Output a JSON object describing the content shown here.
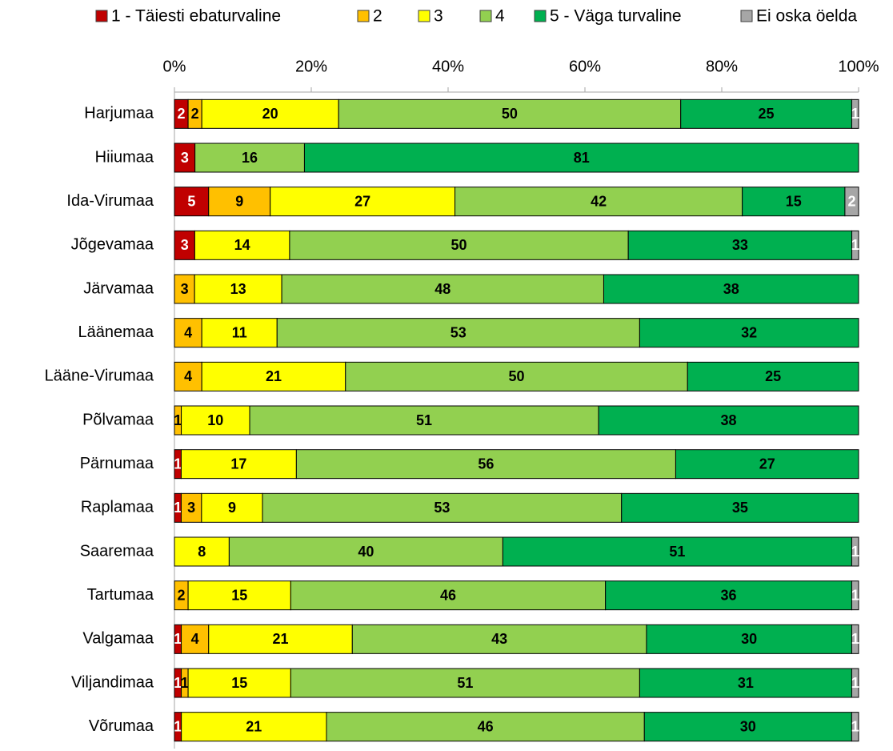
{
  "chart_data": {
    "type": "bar",
    "orientation": "horizontal",
    "stacked": "percent",
    "categories": [
      "Harjumaa",
      "Hiiumaa",
      "Ida-Virumaa",
      "Jõgevamaa",
      "Järvamaa",
      "Läänemaa",
      "Lääne-Virumaa",
      "Põlvamaa",
      "Pärnumaa",
      "Raplamaa",
      "Saaremaa",
      "Tartumaa",
      "Valgamaa",
      "Viljandimaa",
      "Võrumaa"
    ],
    "series": [
      {
        "name": "1 - Täiesti ebaturvaline",
        "color": "#c00000",
        "label_color": "#ffffff",
        "values": [
          2,
          3,
          5,
          3,
          null,
          null,
          null,
          null,
          1,
          1,
          null,
          null,
          1,
          1,
          1
        ]
      },
      {
        "name": "2",
        "color": "#ffc000",
        "label_color": "#000000",
        "values": [
          2,
          null,
          9,
          null,
          3,
          4,
          4,
          1,
          null,
          3,
          null,
          2,
          4,
          1,
          null
        ]
      },
      {
        "name": "3",
        "color": "#ffff00",
        "label_color": "#000000",
        "values": [
          20,
          null,
          27,
          14,
          13,
          11,
          21,
          10,
          17,
          9,
          8,
          15,
          21,
          15,
          21
        ]
      },
      {
        "name": "4",
        "color": "#92d050",
        "label_color": "#000000",
        "values": [
          50,
          16,
          42,
          50,
          48,
          53,
          50,
          51,
          56,
          53,
          40,
          46,
          43,
          51,
          46
        ]
      },
      {
        "name": "5 - Väga turvaline",
        "color": "#00b050",
        "label_color": "#000000",
        "values": [
          25,
          81,
          15,
          33,
          38,
          32,
          25,
          38,
          27,
          35,
          51,
          36,
          30,
          31,
          30
        ]
      },
      {
        "name": "Ei oska öelda",
        "color": "#a6a6a6",
        "label_color": "#ffffff",
        "values": [
          1,
          null,
          2,
          1,
          null,
          null,
          null,
          null,
          null,
          null,
          1,
          1,
          1,
          1,
          1
        ]
      }
    ],
    "xlim": [
      0,
      100
    ],
    "xticks": [
      {
        "value": 0,
        "label": "0%"
      },
      {
        "value": 20,
        "label": "20%"
      },
      {
        "value": 40,
        "label": "40%"
      },
      {
        "value": 60,
        "label": "60%"
      },
      {
        "value": 80,
        "label": "80%"
      },
      {
        "value": 100,
        "label": "100%"
      }
    ],
    "legend": "top"
  }
}
